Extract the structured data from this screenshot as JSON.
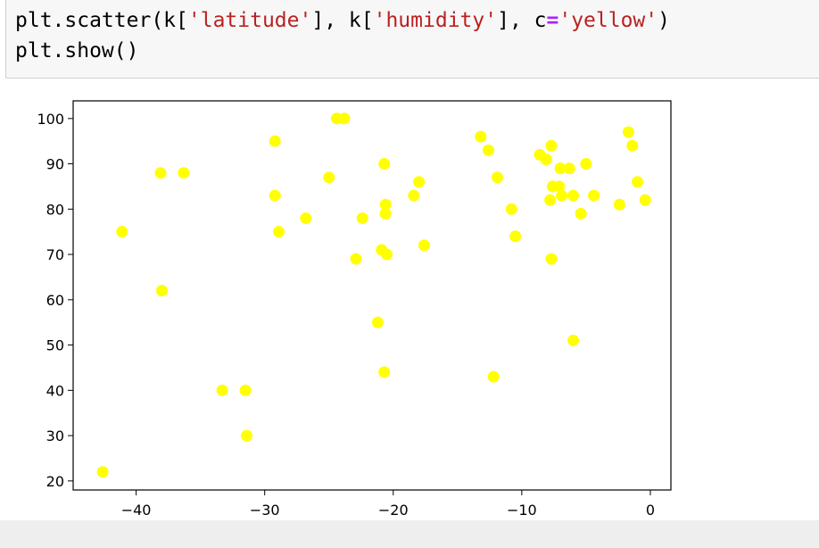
{
  "code": {
    "lines": [
      [
        "plt.scatter(k[",
        "'latitude'",
        "], k[",
        "'humidity'",
        "], c",
        "=",
        "'yellow'",
        ")"
      ],
      [
        "plt.show()"
      ]
    ]
  },
  "chart_data": {
    "type": "scatter",
    "color": "yellow",
    "x": [
      -42.6,
      -41.1,
      -38.1,
      -36.3,
      -38.0,
      -33.3,
      -31.5,
      -31.4,
      -29.2,
      -29.2,
      -28.9,
      -26.8,
      -25.0,
      -24.4,
      -23.8,
      -22.9,
      -22.4,
      -21.2,
      -20.9,
      -20.7,
      -20.6,
      -20.6,
      -20.5,
      -20.7,
      -18.4,
      -18.0,
      -17.6,
      -13.2,
      -12.6,
      -12.2,
      -11.9,
      -10.8,
      -10.5,
      -8.6,
      -8.1,
      -7.7,
      -7.8,
      -7.7,
      -7.6,
      -7.1,
      -7.0,
      -6.9,
      -6.3,
      -6.0,
      -6.0,
      -5.4,
      -5.0,
      -4.4,
      -2.4,
      -1.7,
      -1.4,
      -1.0,
      -0.4
    ],
    "values": [
      22,
      75,
      88,
      88,
      62,
      40,
      40,
      30,
      95,
      83,
      75,
      78,
      87,
      100,
      100,
      69,
      78,
      55,
      71,
      90,
      81,
      79,
      70,
      44,
      83,
      86,
      72,
      96,
      93,
      43,
      87,
      80,
      74,
      92,
      91,
      94,
      82,
      69,
      85,
      85,
      89,
      83,
      89,
      83,
      51,
      79,
      90,
      83,
      81,
      97,
      94,
      86,
      82
    ],
    "xlim": [
      -44.9,
      1.6
    ],
    "ylim": [
      18,
      103.9
    ],
    "xticks": [
      {
        "value": -40,
        "label": "−40"
      },
      {
        "value": -30,
        "label": "−30"
      },
      {
        "value": -20,
        "label": "−20"
      },
      {
        "value": -10,
        "label": "−10"
      },
      0
    ],
    "yticks": [
      20,
      30,
      40,
      50,
      60,
      70,
      80,
      90,
      100
    ]
  }
}
